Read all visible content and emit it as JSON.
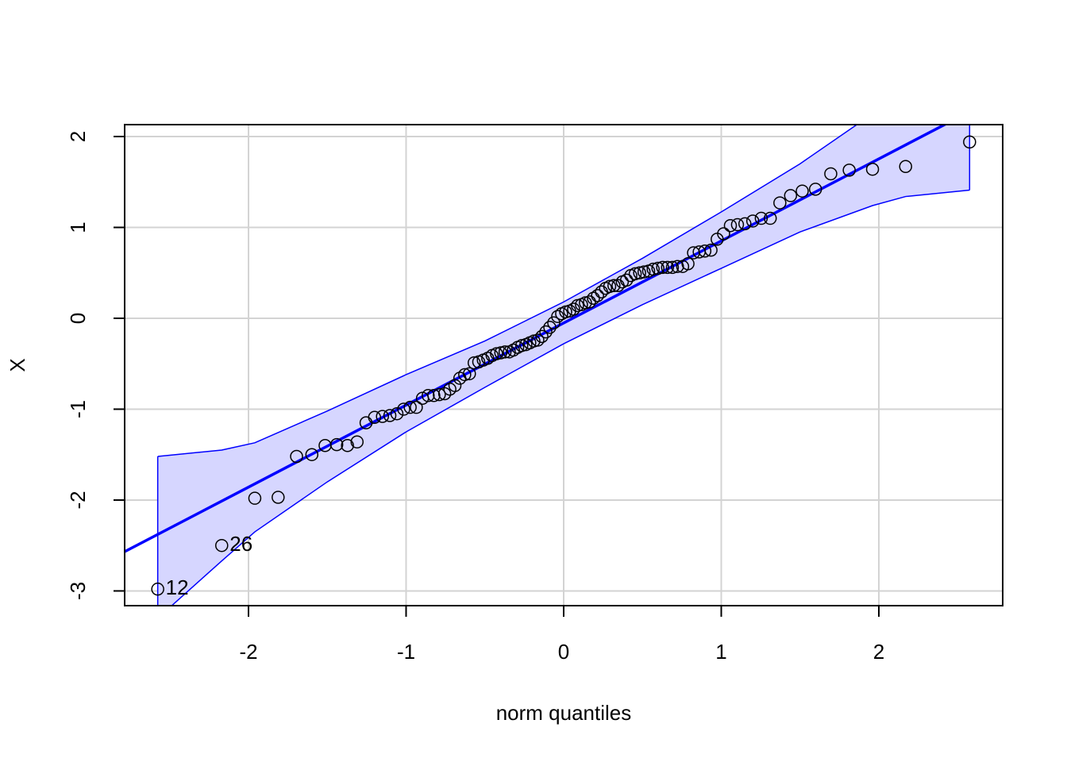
{
  "chart_data": {
    "type": "qqplot",
    "xlabel": "norm quantiles",
    "ylabel": "X",
    "xlim": [
      -2.786,
      2.786
    ],
    "ylim": [
      -3.162,
      2.131
    ],
    "xticks": [
      -2,
      -1,
      0,
      1,
      2
    ],
    "yticks": [
      -3,
      -2,
      -1,
      0,
      1,
      2
    ],
    "grid": true,
    "point_color": "#000000",
    "x": [
      -2.576,
      -2.17,
      -1.96,
      -1.812,
      -1.695,
      -1.598,
      -1.514,
      -1.44,
      -1.372,
      -1.311,
      -1.254,
      -1.2,
      -1.15,
      -1.103,
      -1.058,
      -1.015,
      -0.974,
      -0.935,
      -0.896,
      -0.86,
      -0.824,
      -0.789,
      -0.755,
      -0.722,
      -0.69,
      -0.659,
      -0.628,
      -0.598,
      -0.568,
      -0.539,
      -0.51,
      -0.482,
      -0.454,
      -0.426,
      -0.399,
      -0.372,
      -0.345,
      -0.319,
      -0.292,
      -0.266,
      -0.24,
      -0.215,
      -0.189,
      -0.164,
      -0.138,
      -0.113,
      -0.088,
      -0.063,
      -0.038,
      -0.013,
      0.013,
      0.038,
      0.063,
      0.088,
      0.113,
      0.138,
      0.164,
      0.189,
      0.215,
      0.24,
      0.266,
      0.292,
      0.319,
      0.345,
      0.372,
      0.399,
      0.426,
      0.454,
      0.482,
      0.51,
      0.539,
      0.568,
      0.598,
      0.628,
      0.659,
      0.69,
      0.722,
      0.755,
      0.789,
      0.824,
      0.86,
      0.896,
      0.935,
      0.974,
      1.015,
      1.058,
      1.103,
      1.15,
      1.2,
      1.254,
      1.311,
      1.372,
      1.44,
      1.514,
      1.598,
      1.695,
      1.812,
      1.96,
      2.17,
      2.576
    ],
    "values": [
      -2.98,
      -2.5,
      -1.98,
      -1.97,
      -1.52,
      -1.5,
      -1.4,
      -1.39,
      -1.4,
      -1.36,
      -1.15,
      -1.09,
      -1.08,
      -1.07,
      -1.05,
      -1.0,
      -0.98,
      -0.98,
      -0.88,
      -0.85,
      -0.85,
      -0.84,
      -0.83,
      -0.78,
      -0.74,
      -0.66,
      -0.62,
      -0.61,
      -0.49,
      -0.48,
      -0.46,
      -0.44,
      -0.41,
      -0.39,
      -0.38,
      -0.37,
      -0.37,
      -0.35,
      -0.32,
      -0.3,
      -0.29,
      -0.27,
      -0.25,
      -0.24,
      -0.2,
      -0.15,
      -0.1,
      -0.05,
      0.02,
      0.05,
      0.07,
      0.08,
      0.1,
      0.14,
      0.15,
      0.17,
      0.18,
      0.22,
      0.25,
      0.29,
      0.33,
      0.35,
      0.36,
      0.36,
      0.4,
      0.42,
      0.47,
      0.49,
      0.5,
      0.51,
      0.52,
      0.54,
      0.55,
      0.56,
      0.56,
      0.56,
      0.57,
      0.57,
      0.6,
      0.72,
      0.73,
      0.74,
      0.75,
      0.87,
      0.93,
      1.02,
      1.03,
      1.04,
      1.07,
      1.1,
      1.1,
      1.27,
      1.35,
      1.4,
      1.42,
      1.59,
      1.63,
      1.64,
      1.67,
      1.94
    ],
    "line": {
      "intercept": -0.052,
      "slope": 0.903,
      "color": "#0000ff"
    },
    "band": {
      "color": "#0000ff",
      "fill": "#d6d6ff",
      "x": [
        -2.576,
        -2.17,
        -1.96,
        -1.5,
        -1,
        -0.5,
        0,
        0.5,
        1,
        1.5,
        1.96,
        2.17,
        2.576
      ],
      "upper": [
        -1.52,
        -1.45,
        -1.37,
        -1.02,
        -0.62,
        -0.25,
        0.18,
        0.66,
        1.17,
        1.7,
        2.25,
        2.5,
        3.0
      ],
      "lower": [
        -3.3,
        -2.67,
        -2.35,
        -1.8,
        -1.25,
        -0.76,
        -0.28,
        0.15,
        0.55,
        0.95,
        1.24,
        1.34,
        1.41
      ]
    },
    "annotations": [
      {
        "text": "12",
        "point": 0
      },
      {
        "text": "26",
        "point": 1
      }
    ]
  }
}
